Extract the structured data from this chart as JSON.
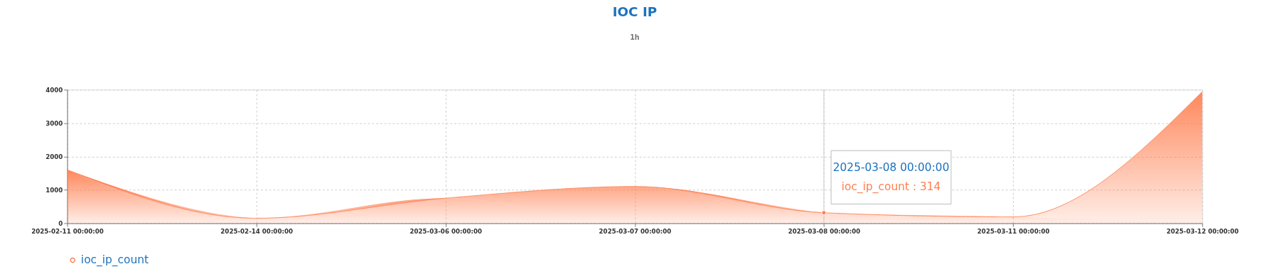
{
  "chart_data": {
    "type": "area",
    "title": "IOC IP",
    "categories": [
      "2025-02-11 00:00:00",
      "2025-02-14 00:00:00",
      "2025-03-06 00:00:00",
      "2025-03-07 00:00:00",
      "2025-03-08 00:00:00",
      "2025-03-11 00:00:00",
      "2025-03-12 00:00:00"
    ],
    "series": [
      {
        "name": "ioc_ip_count",
        "color": "#ff7f50",
        "values": [
          1600,
          150,
          750,
          1100,
          314,
          190,
          3940
        ]
      }
    ],
    "ylim": [
      0,
      4000
    ],
    "yticks": [
      0,
      1000,
      2000,
      3000,
      4000
    ],
    "grid": true,
    "legend": "bottom",
    "marker": "none",
    "ref_lines": [
      {
        "axis": "x",
        "value": "2025-03-08 00:00:00",
        "color": "#cccccc"
      }
    ],
    "annotations": [
      "1h",
      {
        "text": "2025-03-08 00:00:00\nioc_ip_count : 314",
        "x": "2025-03-08 00:00:00",
        "y": 314
      }
    ]
  }
}
